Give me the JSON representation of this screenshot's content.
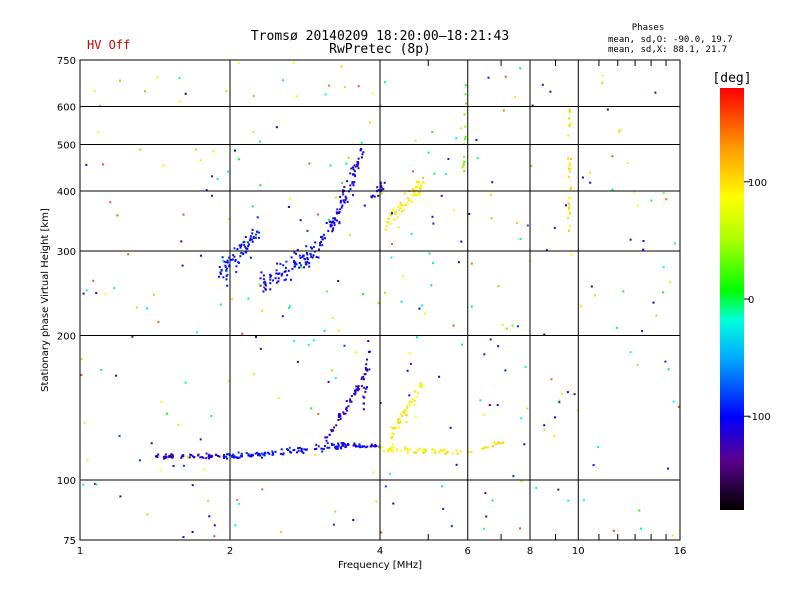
{
  "header": {
    "status": "HV Off",
    "title": "Tromsø 20140209 18:20:00–18:21:43",
    "subtitle": "RwPretec (8p)"
  },
  "stats": {
    "heading": "Phases",
    "line_o": "mean, sd,O: -90.0, 19.7",
    "line_x": "mean, sd,X: 88.1, 21.7"
  },
  "colors": {
    "status": "#d00000",
    "grid": "#000000"
  },
  "colorbar": {
    "unit": "[deg]",
    "range": [
      -180,
      180
    ],
    "ticks": [
      100,
      0,
      -100
    ],
    "tick_labels": [
      "100",
      "0",
      "-100"
    ]
  },
  "chart_data": {
    "type": "scatter",
    "xlabel": "Frequency [MHz]",
    "ylabel": "Stationary phase Virtual Height [km]",
    "x_scale": "log",
    "y_scale": "log",
    "xlim": [
      1,
      16
    ],
    "ylim": [
      75,
      750
    ],
    "grid": true,
    "x_ticks": [
      1,
      2,
      4,
      6,
      8,
      10,
      16
    ],
    "x_tick_labels": [
      "1",
      "2",
      "4",
      "6",
      "8",
      "10",
      "16"
    ],
    "y_ticks": [
      750,
      600,
      500,
      400,
      300,
      200,
      100,
      75
    ],
    "y_tick_labels": [
      "750",
      "600",
      "500",
      "400",
      "300",
      "200",
      "100",
      "75"
    ],
    "color_encodes": "phase [deg]",
    "traces": [
      {
        "f_start": 1.42,
        "f_end": 1.95,
        "h_start": 112,
        "h_end": 112,
        "phase": -118,
        "count": 60,
        "spread_h": 0.02
      },
      {
        "f_start": 1.95,
        "f_end": 2.5,
        "h_start": 112,
        "h_end": 114,
        "phase": -95,
        "count": 55,
        "spread_h": 0.02
      },
      {
        "f_start": 2.5,
        "f_end": 3.4,
        "h_start": 114,
        "h_end": 118,
        "phase": -100,
        "count": 55,
        "spread_h": 0.025
      },
      {
        "f_start": 3.4,
        "f_end": 4.0,
        "h_start": 118,
        "h_end": 117,
        "phase": -108,
        "count": 30,
        "spread_h": 0.015
      },
      {
        "f_start": 4.0,
        "f_end": 5.8,
        "h_start": 116,
        "h_end": 114,
        "phase": 95,
        "count": 50,
        "spread_h": 0.02
      },
      {
        "f_start": 6.0,
        "f_end": 7.1,
        "h_start": 114,
        "h_end": 120,
        "phase": 100,
        "count": 18,
        "spread_h": 0.02
      },
      {
        "f_start": 3.1,
        "f_end": 3.8,
        "h_start": 120,
        "h_end": 170,
        "phase": -118,
        "count": 55,
        "spread_h": 0.05
      },
      {
        "f_start": 3.7,
        "f_end": 3.8,
        "h_start": 140,
        "h_end": 190,
        "phase": -110,
        "count": 18,
        "spread_h": 0.04
      },
      {
        "f_start": 4.2,
        "f_end": 4.9,
        "h_start": 122,
        "h_end": 160,
        "phase": 95,
        "count": 45,
        "spread_h": 0.05
      },
      {
        "f_start": 1.9,
        "f_end": 2.3,
        "h_start": 270,
        "h_end": 330,
        "phase": -95,
        "count": 70,
        "spread_h": 0.09
      },
      {
        "f_start": 2.3,
        "f_end": 3.0,
        "h_start": 255,
        "h_end": 300,
        "phase": -100,
        "count": 90,
        "spread_h": 0.08
      },
      {
        "f_start": 3.0,
        "f_end": 3.55,
        "h_start": 300,
        "h_end": 410,
        "phase": -105,
        "count": 55,
        "spread_h": 0.07
      },
      {
        "f_start": 3.3,
        "f_end": 3.7,
        "h_start": 380,
        "h_end": 480,
        "phase": -110,
        "count": 40,
        "spread_h": 0.07
      },
      {
        "f_start": 3.8,
        "f_end": 4.1,
        "h_start": 380,
        "h_end": 420,
        "phase": -110,
        "count": 18,
        "spread_h": 0.04
      },
      {
        "f_start": 4.1,
        "f_end": 4.9,
        "h_start": 340,
        "h_end": 420,
        "phase": 95,
        "count": 60,
        "spread_h": 0.06
      },
      {
        "f_start": 9.6,
        "f_end": 9.6,
        "h_start": 330,
        "h_end": 600,
        "phase": 100,
        "count": 30,
        "spread_h": 0.01
      },
      {
        "f_start": 5.9,
        "f_end": 5.95,
        "h_start": 420,
        "h_end": 680,
        "phase": 30,
        "count": 14,
        "spread_h": 0.02
      }
    ],
    "noise_points": 320
  }
}
